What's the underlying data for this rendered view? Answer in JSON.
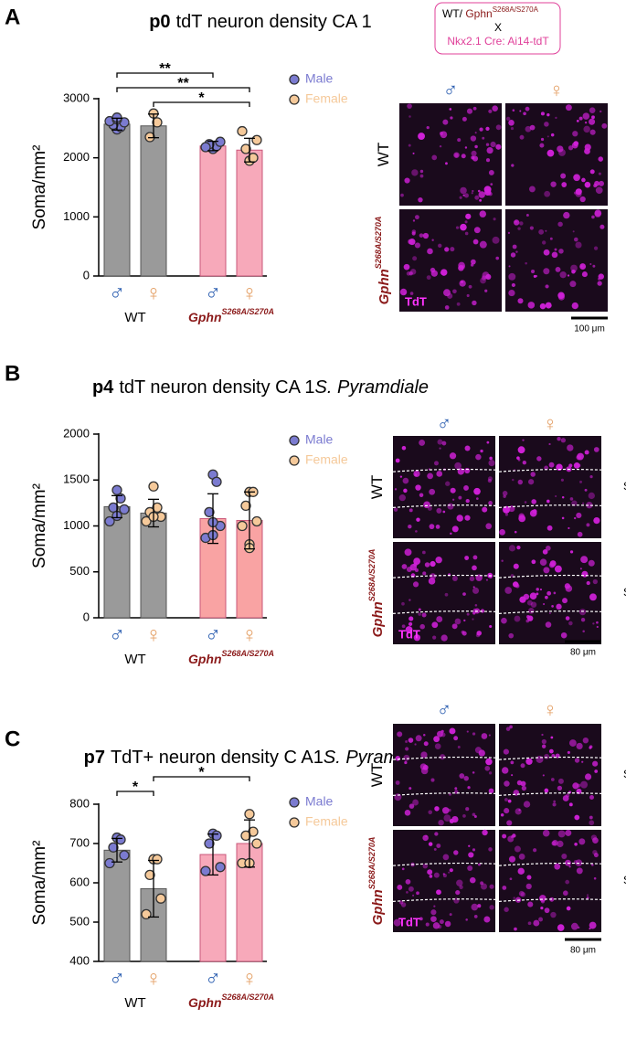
{
  "chart_data": [
    {
      "type": "bar",
      "panel": "A",
      "title_bold": "p0",
      "title": "tdT neuron density CA 1",
      "ylabel": "Soma/mm²",
      "ylim": [
        0,
        3000
      ],
      "yticks": [
        0,
        1000,
        2000,
        3000
      ],
      "categories": [
        "♂",
        "♀",
        "♂",
        "♀"
      ],
      "groups": [
        {
          "text": "WT"
        },
        {
          "text": "Gphn",
          "sup": "S268A/S270A"
        }
      ],
      "colors": [
        "#9a9a9a",
        "#9a9a9a",
        "#f7a9ba",
        "#f7a9ba"
      ],
      "values": [
        2570,
        2540,
        2200,
        2130
      ],
      "errors": [
        100,
        200,
        80,
        200
      ],
      "points": [
        [
          2480,
          2520,
          2560,
          2600,
          2620,
          2650,
          2680
        ],
        [
          2750,
          2600,
          2350
        ],
        [
          2150,
          2200,
          2230,
          2270,
          2180
        ],
        [
          1950,
          2000,
          2150,
          2300,
          2450
        ]
      ],
      "legend": [
        {
          "name": "Male",
          "color": "#7b7bd0"
        },
        {
          "name": "Female",
          "color": "#f5c99a"
        }
      ],
      "significance": [
        {
          "from": 0,
          "to": 2,
          "label": "**"
        },
        {
          "from": 0,
          "to": 3,
          "label": "**"
        },
        {
          "from": 1,
          "to": 3,
          "label": "*"
        }
      ],
      "images": {
        "columns": [
          "♂",
          "♀"
        ],
        "rows": [
          {
            "text": "WT"
          },
          {
            "text": "Gphn",
            "sup": "S268A/S270A"
          }
        ],
        "channel": "TdT",
        "scale_bar": "100 μm"
      }
    },
    {
      "type": "bar",
      "panel": "B",
      "title_bold": "p4",
      "title": "tdT neuron density CA 1",
      "title_italic": "S. Pyramdiale",
      "ylabel": "Soma/mm²",
      "ylim": [
        0,
        2000
      ],
      "yticks": [
        0,
        500,
        1000,
        1500,
        2000
      ],
      "categories": [
        "♂",
        "♀",
        "♂",
        "♀"
      ],
      "groups": [
        {
          "text": "WT"
        },
        {
          "text": "Gphn",
          "sup": "S268A/S270A"
        }
      ],
      "colors": [
        "#9a9a9a",
        "#9a9a9a",
        "#f9a3a3",
        "#f9a3a3"
      ],
      "values": [
        1210,
        1140,
        1080,
        1060
      ],
      "errors": [
        120,
        150,
        270,
        310
      ],
      "points": [
        [
          1390,
          1300,
          1200,
          1180,
          1050,
          1110
        ],
        [
          1430,
          1200,
          1150,
          1100,
          1050,
          1100
        ],
        [
          1560,
          1480,
          1150,
          1000,
          870,
          1040,
          900
        ],
        [
          1370,
          1370,
          1220,
          1050,
          1000,
          800,
          760
        ]
      ],
      "legend": [
        {
          "name": "Male",
          "color": "#7b7bd0"
        },
        {
          "name": "Female",
          "color": "#f5c99a"
        }
      ],
      "significance": [],
      "images": {
        "columns": [
          "♂",
          "♀"
        ],
        "rows": [
          {
            "text": "WT"
          },
          {
            "text": "Gphn",
            "sup": "S268A/S270A"
          }
        ],
        "channel": "TdT",
        "scale_bar": "80 μm",
        "region": "S.P."
      }
    },
    {
      "type": "bar",
      "panel": "C",
      "title_bold": "p7",
      "title": "TdT+ neuron density C A1",
      "title_italic": "S. Pyramdiale",
      "ylabel": "Soma/mm²",
      "ylim": [
        400,
        800
      ],
      "yticks": [
        400,
        500,
        600,
        700,
        800
      ],
      "categories": [
        "♂",
        "♀",
        "♂",
        "♀"
      ],
      "groups": [
        {
          "text": "WT"
        },
        {
          "text": "Gphn",
          "sup": "S268A/S270A"
        }
      ],
      "colors": [
        "#9a9a9a",
        "#9a9a9a",
        "#f7a9ba",
        "#f7a9ba"
      ],
      "values": [
        683,
        585,
        672,
        700
      ],
      "errors": [
        30,
        72,
        52,
        60
      ],
      "points": [
        [
          715,
          710,
          690,
          670,
          650
        ],
        [
          660,
          660,
          620,
          560,
          520
        ],
        [
          725,
          720,
          700,
          640,
          630
        ],
        [
          775,
          730,
          720,
          700,
          650,
          650
        ]
      ],
      "legend": [
        {
          "name": "Male",
          "color": "#7b7bd0"
        },
        {
          "name": "Female",
          "color": "#f5c99a"
        }
      ],
      "significance": [
        {
          "from": 1,
          "to": 3,
          "label": "*"
        },
        {
          "from": 0,
          "to": 1,
          "label": "*"
        }
      ],
      "images": {
        "columns": [
          "♂",
          "♀"
        ],
        "rows": [
          {
            "text": "WT"
          },
          {
            "text": "Gphn",
            "sup": "S268A/S270A"
          }
        ],
        "channel": "TdT",
        "scale_bar": "80 μm",
        "region": "S.P."
      }
    }
  ],
  "cross": {
    "line1": "WT/ ",
    "line1_gene": "Gphn",
    "line1_sup": "S268A/S270A",
    "x": "X",
    "line2": "Nkx2.1 Cre: Ai14-tdT"
  }
}
